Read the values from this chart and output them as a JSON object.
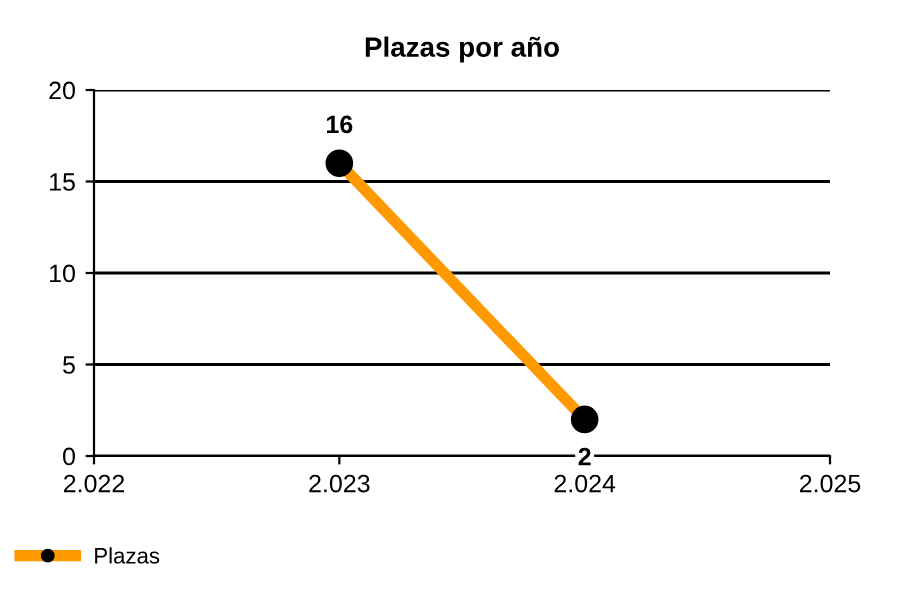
{
  "chart_data": {
    "type": "line",
    "title": "Plazas por año",
    "x": [
      2023,
      2024
    ],
    "series": [
      {
        "name": "Plazas",
        "color": "#ff9900",
        "values": [
          16,
          2
        ]
      }
    ],
    "xlim": [
      2022,
      2025
    ],
    "xticks": [
      {
        "value": 2022,
        "label": "2.022"
      },
      {
        "value": 2023,
        "label": "2.023"
      },
      {
        "value": 2024,
        "label": "2.024"
      },
      {
        "value": 2025,
        "label": "2.025"
      }
    ],
    "ylim": [
      0,
      20
    ],
    "yticks": [
      0,
      5,
      10,
      15,
      20
    ],
    "grid": "y",
    "legend": "bottom left",
    "marker": "circle",
    "line_style": "solid",
    "data_labels": true
  }
}
